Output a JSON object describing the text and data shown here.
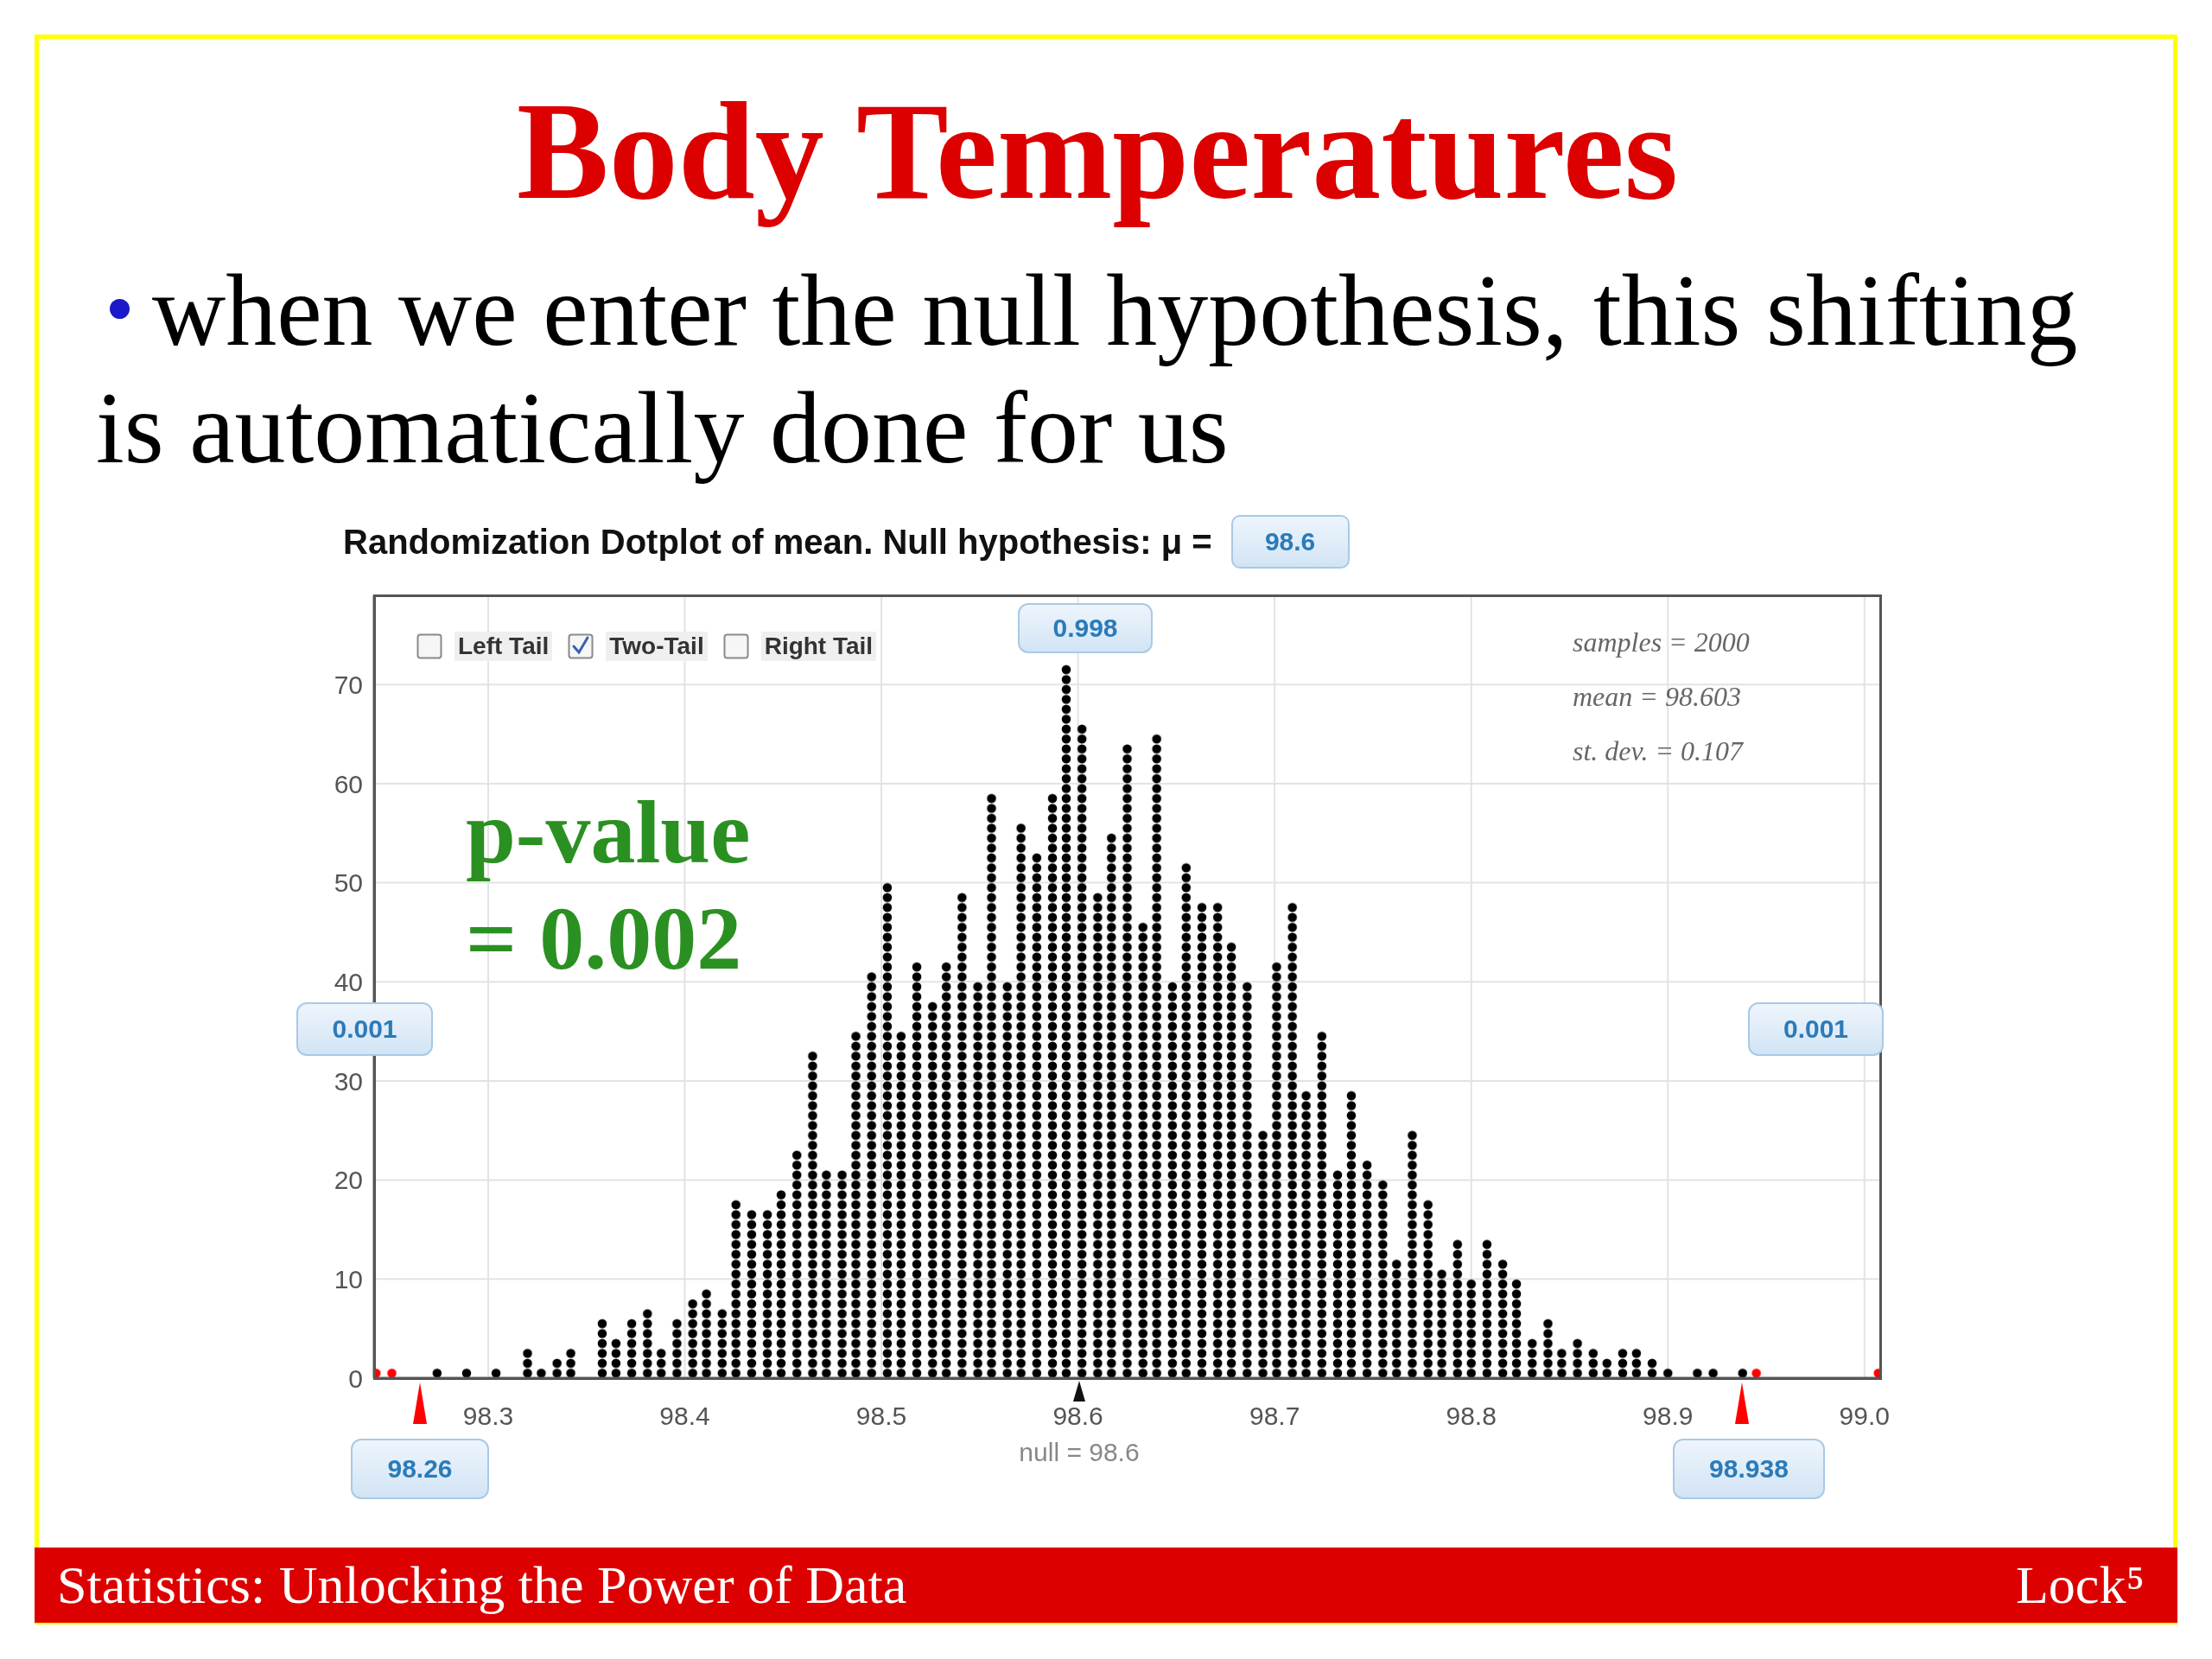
{
  "chart_data": {
    "type": "bar",
    "title": "Body Temperatures",
    "subtitle": "when we enter the null hypothesis, this shifting is automatically done for us",
    "x": [
      98.243,
      98.251,
      98.274,
      98.289,
      98.304,
      98.32,
      98.327,
      98.335,
      98.342,
      98.358,
      98.365,
      98.373,
      98.381,
      98.388,
      98.396,
      98.404,
      98.411,
      98.419,
      98.426,
      98.434,
      98.442,
      98.449,
      98.457,
      98.465,
      98.472,
      98.48,
      98.487,
      98.495,
      98.503,
      98.51,
      98.518,
      98.526,
      98.533,
      98.541,
      98.549,
      98.556,
      98.564,
      98.571,
      98.579,
      98.587,
      98.594,
      98.602,
      98.61,
      98.617,
      98.625,
      98.633,
      98.64,
      98.648,
      98.655,
      98.663,
      98.671,
      98.678,
      98.686,
      98.694,
      98.701,
      98.709,
      98.716,
      98.724,
      98.732,
      98.739,
      98.747,
      98.755,
      98.762,
      98.77,
      98.778,
      98.785,
      98.793,
      98.8,
      98.808,
      98.816,
      98.823,
      98.831,
      98.839,
      98.846,
      98.854,
      98.862,
      98.869,
      98.877,
      98.884,
      98.892,
      98.9,
      98.915,
      98.923,
      98.938,
      98.945,
      99.007
    ],
    "values": [
      1,
      1,
      1,
      1,
      1,
      3,
      1,
      2,
      3,
      6,
      4,
      6,
      7,
      3,
      6,
      8,
      9,
      7,
      18,
      17,
      17,
      19,
      23,
      33,
      21,
      21,
      35,
      41,
      50,
      35,
      42,
      38,
      42,
      49,
      40,
      59,
      40,
      56,
      53,
      59,
      72,
      66,
      49,
      55,
      64,
      46,
      65,
      40,
      52,
      48,
      48,
      44,
      40,
      25,
      42,
      48,
      29,
      35,
      21,
      29,
      22,
      20,
      12,
      25,
      18,
      11,
      14,
      10,
      14,
      12,
      10,
      4,
      6,
      3,
      4,
      3,
      2,
      3,
      3,
      2,
      1,
      1,
      1,
      1,
      1,
      1
    ],
    "colors": [
      "#ff0000",
      "#ff0000",
      "#000000",
      "#000000",
      "#000000",
      "#000000",
      "#000000",
      "#000000",
      "#000000",
      "#000000",
      "#000000",
      "#000000",
      "#000000",
      "#000000",
      "#000000",
      "#000000",
      "#000000",
      "#000000",
      "#000000",
      "#000000",
      "#000000",
      "#000000",
      "#000000",
      "#000000",
      "#000000",
      "#000000",
      "#000000",
      "#000000",
      "#000000",
      "#000000",
      "#000000",
      "#000000",
      "#000000",
      "#000000",
      "#000000",
      "#000000",
      "#000000",
      "#000000",
      "#000000",
      "#000000",
      "#000000",
      "#000000",
      "#000000",
      "#000000",
      "#000000",
      "#000000",
      "#000000",
      "#000000",
      "#000000",
      "#000000",
      "#000000",
      "#000000",
      "#000000",
      "#000000",
      "#000000",
      "#000000",
      "#000000",
      "#000000",
      "#000000",
      "#000000",
      "#000000",
      "#000000",
      "#000000",
      "#000000",
      "#000000",
      "#000000",
      "#000000",
      "#000000",
      "#000000",
      "#000000",
      "#000000",
      "#000000",
      "#000000",
      "#000000",
      "#000000",
      "#000000",
      "#000000",
      "#000000",
      "#000000",
      "#000000",
      "#000000",
      "#000000",
      "#000000",
      "#000000",
      "#ff0000",
      "#ff0000"
    ],
    "xlim": [
      98.242,
      99.008
    ],
    "xticks": [
      98.3,
      98.4,
      98.5,
      98.6,
      98.7,
      98.8,
      98.9,
      {
        "value": 99,
        "label": "99.0"
      }
    ],
    "ylim": [
      0,
      79
    ],
    "yticks": [
      0,
      10,
      20,
      30,
      40,
      50,
      60,
      70
    ],
    "grid": true,
    "annotations": [
      "Randomization Dotplot of mean. Null hypothesis: μ =",
      "98.6",
      "Left Tail",
      "Two-Tail",
      "Right Tail",
      "samples = 2000",
      "mean = 98.603",
      "st. dev. = 0.107",
      "p-value = 0.002",
      "0.001",
      "0.998",
      "0.001",
      "98.26",
      "null = 98.6",
      "98.938",
      "Statistics: Unlocking the Power of Data",
      "Lock⁵"
    ]
  }
}
